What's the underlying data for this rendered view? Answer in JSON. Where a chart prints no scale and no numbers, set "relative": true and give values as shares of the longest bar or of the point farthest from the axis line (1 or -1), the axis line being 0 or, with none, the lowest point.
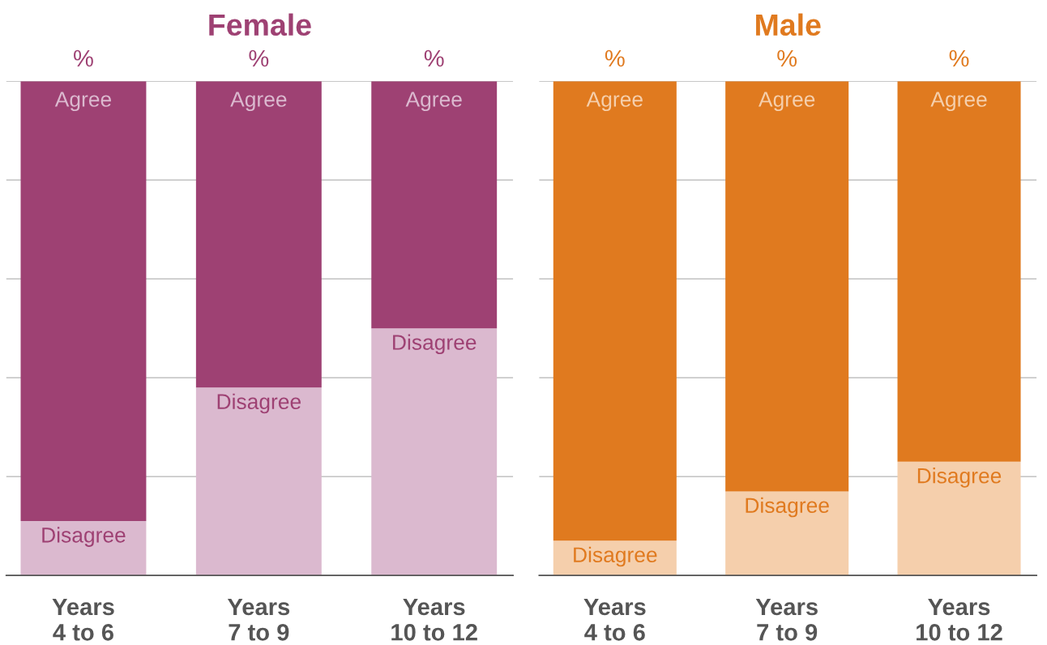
{
  "chart_data": [
    {
      "type": "bar",
      "title": "Female",
      "stacked": true,
      "relative": true,
      "grid": "y",
      "legend": false,
      "tick_labels": "x",
      "categories": [
        "Years\n4 to 6",
        "Years\n7 to 9",
        "Years\n10 to 12"
      ],
      "annotations": [
        "%",
        "%",
        "%"
      ],
      "series": [
        {
          "name": "Disagree",
          "color": "#dbb9cf",
          "values": [
            0.11,
            0.38,
            0.5
          ]
        },
        {
          "name": "Agree",
          "color": "#9e4173",
          "values": [
            0.89,
            0.62,
            0.5
          ]
        }
      ]
    },
    {
      "type": "bar",
      "title": "Male",
      "stacked": true,
      "relative": true,
      "grid": "y",
      "legend": false,
      "tick_labels": "x",
      "categories": [
        "Years\n4 to 6",
        "Years\n7 to 9",
        "Years\n10 to 12"
      ],
      "annotations": [
        "%",
        "%",
        "%"
      ],
      "series": [
        {
          "name": "Disagree",
          "color": "#f5cfac",
          "values": [
            0.07,
            0.17,
            0.23
          ]
        },
        {
          "name": "Agree",
          "color": "#e07a1f",
          "values": [
            0.93,
            0.83,
            0.77
          ]
        }
      ]
    }
  ]
}
